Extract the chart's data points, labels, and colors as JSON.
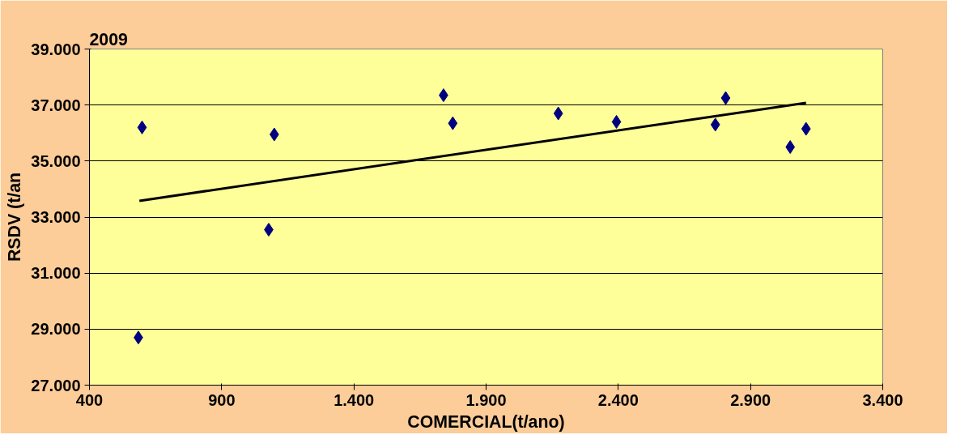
{
  "chart_data": {
    "type": "scatter",
    "title": "2009",
    "xlabel": "COMERCIAL(t/ano)",
    "ylabel": "RSDV (t/an",
    "xlim": [
      400,
      3400
    ],
    "ylim": [
      27000,
      39000
    ],
    "xticks": [
      {
        "value": 400,
        "label": "400"
      },
      {
        "value": 900,
        "label": "900"
      },
      {
        "value": 1400,
        "label": "1.400"
      },
      {
        "value": 1900,
        "label": "1.900"
      },
      {
        "value": 2400,
        "label": "2.400"
      },
      {
        "value": 2900,
        "label": "2.900"
      },
      {
        "value": 3400,
        "label": "3.400"
      }
    ],
    "yticks": [
      {
        "value": 27000,
        "label": "27.000"
      },
      {
        "value": 29000,
        "label": "29.000"
      },
      {
        "value": 31000,
        "label": "31.000"
      },
      {
        "value": 33000,
        "label": "33.000"
      },
      {
        "value": 35000,
        "label": "35.000"
      },
      {
        "value": 37000,
        "label": "37.000"
      },
      {
        "value": 39000,
        "label": "39.000"
      }
    ],
    "grid": "y",
    "marker": "diamond",
    "series": [
      {
        "color": "#000080",
        "x": [
          585,
          599,
          1078,
          1099,
          1739,
          1774,
          2173,
          2393,
          2767,
          2806,
          3050,
          3110
        ],
        "values": [
          28700,
          36200,
          32550,
          35950,
          37350,
          36350,
          36700,
          36400,
          36300,
          37250,
          35500,
          36150
        ]
      },
      {
        "type": "line",
        "color": "#000000",
        "line_style": "solid",
        "marker": "none",
        "x": [
          589,
          3110
        ],
        "values": [
          33580,
          37080
        ]
      }
    ]
  }
}
